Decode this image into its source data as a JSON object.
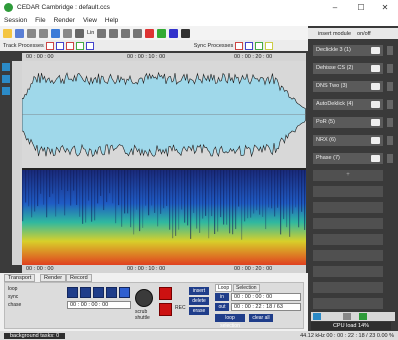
{
  "window": {
    "title": "CEDAR Cambridge : default.ccs"
  },
  "menu": [
    "Session",
    "File",
    "Render",
    "View",
    "Help"
  ],
  "toolbar": {
    "zoom_label": "Lin"
  },
  "processors": {
    "track_label": "Track Processes",
    "sync_label": "Sync Processes"
  },
  "insert": {
    "label": "insert module",
    "on_label": "on/off"
  },
  "modules": [
    {
      "name": "Declickle 3 (1)"
    },
    {
      "name": "Dehisse CS (2)"
    },
    {
      "name": "DNS Two (3)"
    },
    {
      "name": "AutoDeklick (4)"
    },
    {
      "name": "PoR (5)"
    },
    {
      "name": "NRX (6)"
    },
    {
      "name": "Phase (7)"
    }
  ],
  "timeline": {
    "t0": "00 : 00 : 00",
    "t1": "00 : 00 : 10 : 00",
    "t2": "00 : 00 : 20 : 00"
  },
  "tabs": [
    "Transport",
    "Render",
    "Record"
  ],
  "transport": {
    "position": "00 : 00 : 00 : 00",
    "scrub_label": "scrub",
    "shuttle_label": "shuttle",
    "rec_label": "REC",
    "insert_label": "insert",
    "delete_label": "delete",
    "erase_label": "erase",
    "options": [
      "loop",
      "sync",
      "chase"
    ]
  },
  "loop": {
    "tab_loop": "Loop",
    "tab_selection": "Selection",
    "in_label": "in",
    "out_label": "out",
    "loop_label": "loop selection",
    "clear_label": "clear all",
    "in_time": "00 : 00 : 00 : 00",
    "out_time": "00 : 00 : 22 : 18 / 63"
  },
  "status": {
    "left": "background tasks: 0",
    "right": "44.12 kHz   00 : 00 : 22 : 18 / 23   0.00 %",
    "cpu": "CPU load 14%"
  },
  "colors": {
    "wave": "#9fd8ea",
    "accent_blue": "#1f3d8a",
    "record": "#cc1111"
  }
}
